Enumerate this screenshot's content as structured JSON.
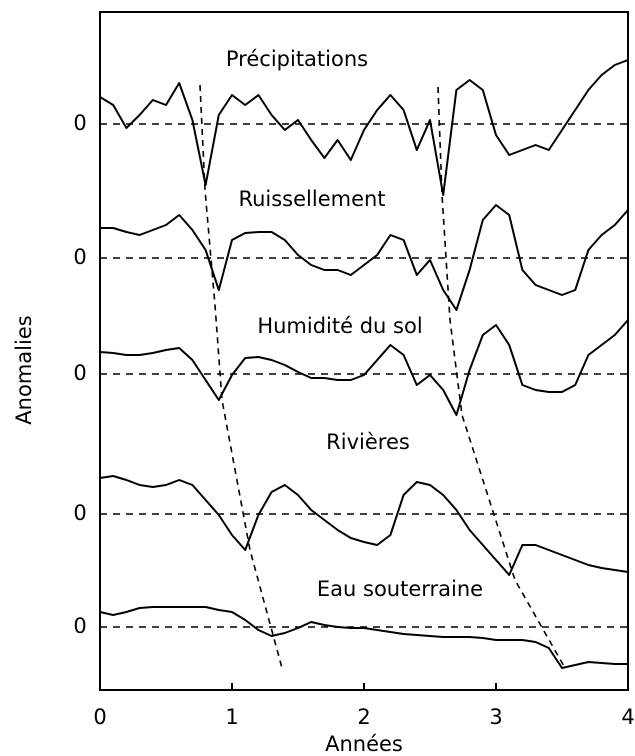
{
  "chart_data": {
    "type": "line",
    "xlabel": "Années",
    "ylabel": "Anomalies",
    "xlim": [
      0,
      4
    ],
    "xticks": [
      0,
      1,
      2,
      3,
      4
    ],
    "color": "#000000",
    "grid": true,
    "x": [
      0,
      0.1,
      0.2,
      0.3,
      0.4,
      0.5,
      0.6,
      0.7,
      0.8,
      0.9,
      1,
      1.1,
      1.2,
      1.3,
      1.4,
      1.5,
      1.6,
      1.7,
      1.8,
      1.9,
      2,
      2.1,
      2.2,
      2.3,
      2.4,
      2.5,
      2.6,
      2.7,
      2.8,
      2.9,
      3,
      3.1,
      3.2,
      3.3,
      3.4,
      3.5,
      3.6,
      3.7,
      3.8,
      3.9,
      4
    ],
    "series": [
      {
        "name": "Précipitations",
        "ylim": [
          -8,
          8
        ],
        "yticks": [
          0
        ],
        "values": [
          2.7,
          1.9,
          -0.4,
          0.9,
          2.4,
          1.9,
          4.1,
          0.4,
          -6.1,
          0.9,
          2.9,
          1.9,
          2.9,
          0.9,
          -0.6,
          0.4,
          -1.6,
          -3.4,
          -1.6,
          -3.6,
          -0.6,
          1.4,
          2.9,
          1.4,
          -2.6,
          0.4,
          -7.1,
          3.4,
          4.4,
          3.4,
          -1.1,
          -3.1,
          -2.6,
          -2.1,
          -2.6,
          -0.6,
          1.4,
          3.4,
          4.9,
          5.9,
          6.4
        ]
      },
      {
        "name": "Ruissellement",
        "ylim": [
          -8,
          8
        ],
        "yticks": [
          0
        ],
        "values": [
          3.0,
          3.0,
          2.6,
          2.3,
          2.8,
          3.3,
          4.3,
          2.8,
          0.8,
          -3.2,
          1.8,
          2.5,
          2.6,
          2.6,
          1.8,
          0.3,
          -0.7,
          -1.2,
          -1.2,
          -1.7,
          -0.7,
          0.3,
          2.3,
          1.8,
          -1.7,
          -0.2,
          -3.2,
          -5.2,
          -1.2,
          3.8,
          5.3,
          4.3,
          -1.2,
          -2.7,
          -3.2,
          -3.7,
          -3.2,
          0.8,
          2.3,
          3.3,
          4.8
        ]
      },
      {
        "name": "Humidité du sol",
        "ylim": [
          -8,
          8
        ],
        "yticks": [
          0
        ],
        "values": [
          2.2,
          2.1,
          1.9,
          1.9,
          2.1,
          2.4,
          2.6,
          1.4,
          -0.6,
          -2.6,
          -0.1,
          1.6,
          1.7,
          1.4,
          0.9,
          0.2,
          -0.4,
          -0.4,
          -0.6,
          -0.6,
          -0.1,
          1.4,
          2.9,
          1.9,
          -1.1,
          -0.1,
          -1.6,
          -4.1,
          0.4,
          3.9,
          4.9,
          2.9,
          -1.1,
          -1.6,
          -1.8,
          -1.8,
          -1.1,
          1.9,
          2.9,
          3.9,
          5.4
        ]
      },
      {
        "name": "Rivières",
        "ylim": [
          -8,
          8
        ],
        "yticks": [
          0
        ],
        "values": [
          3.6,
          3.8,
          3.4,
          2.9,
          2.7,
          2.9,
          3.4,
          2.9,
          1.4,
          -0.1,
          -2.1,
          -3.6,
          -0.1,
          2.2,
          2.9,
          1.9,
          0.4,
          -0.6,
          -1.6,
          -2.4,
          -2.8,
          -3.1,
          -2.1,
          1.9,
          3.2,
          2.9,
          1.9,
          0.4,
          -1.6,
          -3.1,
          -4.6,
          -6.1,
          -3.1,
          -3.1,
          -3.6,
          -4.1,
          -4.6,
          -5.1,
          -5.4,
          -5.6,
          -5.8
        ]
      },
      {
        "name": "Eau souterraine",
        "ylim": [
          -8,
          8
        ],
        "yticks": [
          0
        ],
        "values": [
          1.5,
          1.2,
          1.5,
          1.9,
          2.0,
          2.0,
          2.0,
          2.0,
          2.0,
          1.7,
          1.5,
          0.7,
          -0.3,
          -0.9,
          -0.6,
          -0.1,
          0.5,
          0.2,
          0,
          -0.1,
          -0.1,
          -0.3,
          -0.5,
          -0.7,
          -0.8,
          -0.9,
          -1.0,
          -1.0,
          -1.0,
          -1.1,
          -1.3,
          -1.3,
          -1.3,
          -1.5,
          -2.1,
          -4.1,
          -3.8,
          -3.5,
          -3.6,
          -3.7,
          -3.7
        ]
      }
    ]
  }
}
